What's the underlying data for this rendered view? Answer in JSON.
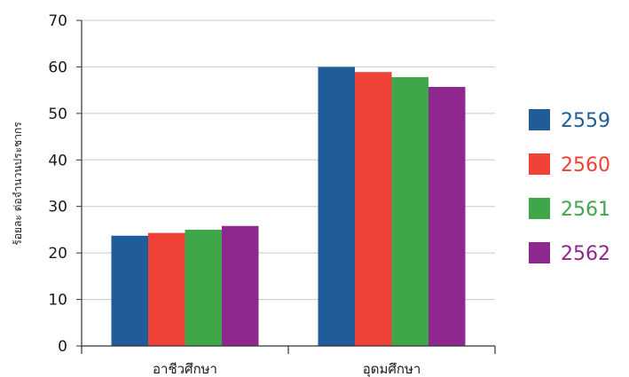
{
  "chart_data": {
    "type": "bar",
    "title": "",
    "xlabel": "",
    "ylabel": "ร้อยละ ต่อจำนวนประชากร",
    "ylim": [
      0,
      70
    ],
    "yticks": [
      0,
      10,
      20,
      30,
      40,
      50,
      60,
      70
    ],
    "grid": true,
    "legend_position": "right",
    "categories": [
      "อาชีวศึกษา",
      "อุดมศึกษา"
    ],
    "series": [
      {
        "name": "2559",
        "color": "#1f5c99",
        "values": [
          23.7,
          60.0
        ]
      },
      {
        "name": "2560",
        "color": "#ef4136",
        "values": [
          24.3,
          58.9
        ]
      },
      {
        "name": "2561",
        "color": "#3fa64a",
        "values": [
          25.0,
          57.8
        ]
      },
      {
        "name": "2562",
        "color": "#8e288f",
        "values": [
          25.8,
          55.7
        ]
      }
    ]
  }
}
